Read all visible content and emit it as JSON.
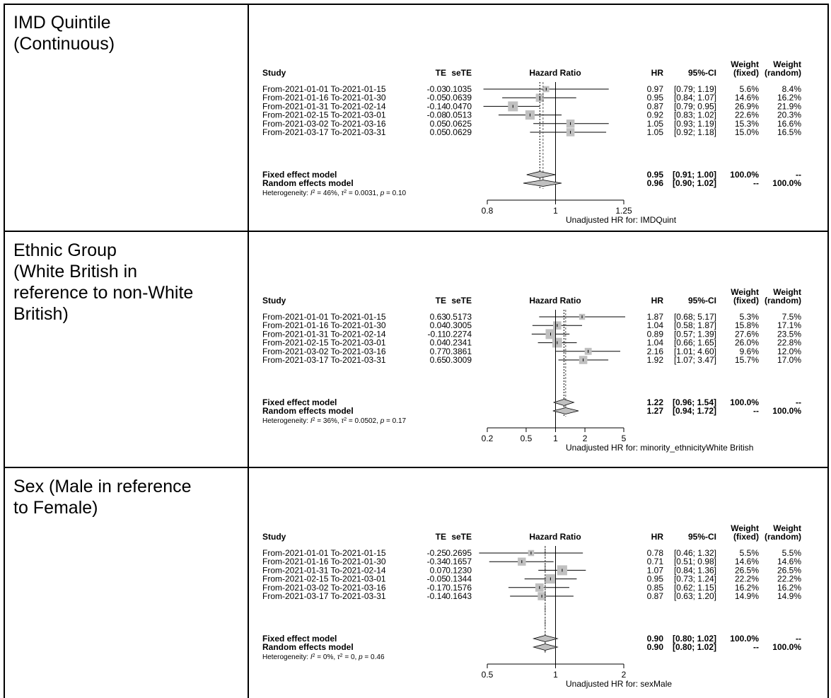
{
  "table": {
    "rows": [
      {
        "label": "IMD Quintile\n(Continuous)",
        "forest": {
          "columns": {
            "study": "Study",
            "te": "TE",
            "sete": "seTE",
            "plot": "Hazard Ratio",
            "hr": "HR",
            "ci": "95%-CI",
            "wfixed": "Weight\n(fixed)",
            "wrandom": "Weight\n(random)"
          },
          "studies": [
            {
              "label": "From-2021-01-01 To-2021-01-15",
              "te": "-0.03",
              "sete": "0.1035",
              "hr": "0.97",
              "ci": "[0.79; 1.19]",
              "wf": "5.6%",
              "wr": "8.4%"
            },
            {
              "label": "From-2021-01-16 To-2021-01-30",
              "te": "-0.05",
              "sete": "0.0639",
              "hr": "0.95",
              "ci": "[0.84; 1.07]",
              "wf": "14.6%",
              "wr": "16.2%"
            },
            {
              "label": "From-2021-01-31 To-2021-02-14",
              "te": "-0.14",
              "sete": "0.0470",
              "hr": "0.87",
              "ci": "[0.79; 0.95]",
              "wf": "26.9%",
              "wr": "21.9%"
            },
            {
              "label": "From-2021-02-15 To-2021-03-01",
              "te": "-0.08",
              "sete": "0.0513",
              "hr": "0.92",
              "ci": "[0.83; 1.02]",
              "wf": "22.6%",
              "wr": "20.3%"
            },
            {
              "label": "From-2021-03-02 To-2021-03-16",
              "te": "0.05",
              "sete": "0.0625",
              "hr": "1.05",
              "ci": "[0.93; 1.19]",
              "wf": "15.3%",
              "wr": "16.6%"
            },
            {
              "label": "From-2021-03-17 To-2021-03-31",
              "te": "0.05",
              "sete": "0.0629",
              "hr": "1.05",
              "ci": "[0.92; 1.18]",
              "wf": "15.0%",
              "wr": "16.5%"
            }
          ],
          "fixed": {
            "label": "Fixed effect model",
            "hr": "0.95",
            "ci": "[0.91; 1.00]",
            "wf": "100.0%",
            "wr": "--"
          },
          "random": {
            "label": "Random effects model",
            "hr": "0.96",
            "ci": "[0.90; 1.02]",
            "wf": "--",
            "wr": "100.0%"
          },
          "heterogeneity": {
            "i2": "46%",
            "tau2": "0.0031",
            "p": "0.10"
          },
          "ticks": [
            "0.8",
            "1",
            "1.25"
          ],
          "xlabel": "Unadjusted HR for: IMDQuint"
        }
      },
      {
        "label": "Ethnic Group\n(White British in\nreference to non-White\nBritish)",
        "forest": {
          "columns": {
            "study": "Study",
            "te": "TE",
            "sete": "seTE",
            "plot": "Hazard Ratio",
            "hr": "HR",
            "ci": "95%-CI",
            "wfixed": "Weight\n(fixed)",
            "wrandom": "Weight\n(random)"
          },
          "studies": [
            {
              "label": "From-2021-01-01 To-2021-01-15",
              "te": "0.63",
              "sete": "0.5173",
              "hr": "1.87",
              "ci": "[0.68; 5.17]",
              "wf": "5.3%",
              "wr": "7.5%"
            },
            {
              "label": "From-2021-01-16 To-2021-01-30",
              "te": "0.04",
              "sete": "0.3005",
              "hr": "1.04",
              "ci": "[0.58; 1.87]",
              "wf": "15.8%",
              "wr": "17.1%"
            },
            {
              "label": "From-2021-01-31 To-2021-02-14",
              "te": "-0.11",
              "sete": "0.2274",
              "hr": "0.89",
              "ci": "[0.57; 1.39]",
              "wf": "27.6%",
              "wr": "23.5%"
            },
            {
              "label": "From-2021-02-15 To-2021-03-01",
              "te": "0.04",
              "sete": "0.2341",
              "hr": "1.04",
              "ci": "[0.66; 1.65]",
              "wf": "26.0%",
              "wr": "22.8%"
            },
            {
              "label": "From-2021-03-02 To-2021-03-16",
              "te": "0.77",
              "sete": "0.3861",
              "hr": "2.16",
              "ci": "[1.01; 4.60]",
              "wf": "9.6%",
              "wr": "12.0%"
            },
            {
              "label": "From-2021-03-17 To-2021-03-31",
              "te": "0.65",
              "sete": "0.3009",
              "hr": "1.92",
              "ci": "[1.07; 3.47]",
              "wf": "15.7%",
              "wr": "17.0%"
            }
          ],
          "fixed": {
            "label": "Fixed effect model",
            "hr": "1.22",
            "ci": "[0.96; 1.54]",
            "wf": "100.0%",
            "wr": "--"
          },
          "random": {
            "label": "Random effects model",
            "hr": "1.27",
            "ci": "[0.94; 1.72]",
            "wf": "--",
            "wr": "100.0%"
          },
          "heterogeneity": {
            "i2": "36%",
            "tau2": "0.0502",
            "p": "0.17"
          },
          "ticks": [
            "0.2",
            "0.5",
            "1",
            "2",
            "5"
          ],
          "xlabel": "Unadjusted HR for: minority_ethnicityWhite British"
        }
      },
      {
        "label": "Sex (Male in reference\nto Female)",
        "forest": {
          "columns": {
            "study": "Study",
            "te": "TE",
            "sete": "seTE",
            "plot": "Hazard Ratio",
            "hr": "HR",
            "ci": "95%-CI",
            "wfixed": "Weight\n(fixed)",
            "wrandom": "Weight\n(random)"
          },
          "studies": [
            {
              "label": "From-2021-01-01 To-2021-01-15",
              "te": "-0.25",
              "sete": "0.2695",
              "hr": "0.78",
              "ci": "[0.46; 1.32]",
              "wf": "5.5%",
              "wr": "5.5%"
            },
            {
              "label": "From-2021-01-16 To-2021-01-30",
              "te": "-0.34",
              "sete": "0.1657",
              "hr": "0.71",
              "ci": "[0.51; 0.98]",
              "wf": "14.6%",
              "wr": "14.6%"
            },
            {
              "label": "From-2021-01-31 To-2021-02-14",
              "te": "0.07",
              "sete": "0.1230",
              "hr": "1.07",
              "ci": "[0.84; 1.36]",
              "wf": "26.5%",
              "wr": "26.5%"
            },
            {
              "label": "From-2021-02-15 To-2021-03-01",
              "te": "-0.05",
              "sete": "0.1344",
              "hr": "0.95",
              "ci": "[0.73; 1.24]",
              "wf": "22.2%",
              "wr": "22.2%"
            },
            {
              "label": "From-2021-03-02 To-2021-03-16",
              "te": "-0.17",
              "sete": "0.1576",
              "hr": "0.85",
              "ci": "[0.62; 1.15]",
              "wf": "16.2%",
              "wr": "16.2%"
            },
            {
              "label": "From-2021-03-17 To-2021-03-31",
              "te": "-0.14",
              "sete": "0.1643",
              "hr": "0.87",
              "ci": "[0.63; 1.20]",
              "wf": "14.9%",
              "wr": "14.9%"
            }
          ],
          "fixed": {
            "label": "Fixed effect model",
            "hr": "0.90",
            "ci": "[0.80; 1.02]",
            "wf": "100.0%",
            "wr": "--"
          },
          "random": {
            "label": "Random effects model",
            "hr": "0.90",
            "ci": "[0.80; 1.02]",
            "wf": "--",
            "wr": "100.0%"
          },
          "heterogeneity": {
            "i2": "0%",
            "tau2": "0",
            "p": "0.46"
          },
          "ticks": [
            "0.5",
            "1",
            "2"
          ],
          "xlabel": "Unadjusted HR for: sexMale"
        }
      }
    ]
  },
  "chart_data": [
    {
      "type": "forest",
      "measure": "Hazard Ratio",
      "xscale": "log",
      "xticks": [
        0.8,
        1,
        1.25
      ],
      "xlim": [
        0.8,
        1.25
      ],
      "xlabel": "Unadjusted HR for: IMDQuint",
      "categories": [
        "From-2021-01-01 To-2021-01-15",
        "From-2021-01-16 To-2021-01-30",
        "From-2021-01-31 To-2021-02-14",
        "From-2021-02-15 To-2021-03-01",
        "From-2021-03-02 To-2021-03-16",
        "From-2021-03-17 To-2021-03-31"
      ],
      "hr": [
        0.97,
        0.95,
        0.87,
        0.92,
        1.05,
        1.05
      ],
      "ci_lower": [
        0.79,
        0.84,
        0.79,
        0.83,
        0.93,
        0.92
      ],
      "ci_upper": [
        1.19,
        1.07,
        0.95,
        1.02,
        1.19,
        1.18
      ],
      "weight_fixed": [
        5.6,
        14.6,
        26.9,
        22.6,
        15.3,
        15.0
      ],
      "weight_random": [
        8.4,
        16.2,
        21.9,
        20.3,
        16.6,
        16.5
      ],
      "fixed": {
        "hr": 0.95,
        "lower": 0.91,
        "upper": 1.0
      },
      "random": {
        "hr": 0.96,
        "lower": 0.9,
        "upper": 1.02
      }
    },
    {
      "type": "forest",
      "measure": "Hazard Ratio",
      "xscale": "log",
      "xticks": [
        0.2,
        0.5,
        1,
        2,
        5
      ],
      "xlim": [
        0.2,
        5
      ],
      "xlabel": "Unadjusted HR for: minority_ethnicityWhite British",
      "categories": [
        "From-2021-01-01 To-2021-01-15",
        "From-2021-01-16 To-2021-01-30",
        "From-2021-01-31 To-2021-02-14",
        "From-2021-02-15 To-2021-03-01",
        "From-2021-03-02 To-2021-03-16",
        "From-2021-03-17 To-2021-03-31"
      ],
      "hr": [
        1.87,
        1.04,
        0.89,
        1.04,
        2.16,
        1.92
      ],
      "ci_lower": [
        0.68,
        0.58,
        0.57,
        0.66,
        1.01,
        1.07
      ],
      "ci_upper": [
        5.17,
        1.87,
        1.39,
        1.65,
        4.6,
        3.47
      ],
      "weight_fixed": [
        5.3,
        15.8,
        27.6,
        26.0,
        9.6,
        15.7
      ],
      "weight_random": [
        7.5,
        17.1,
        23.5,
        22.8,
        12.0,
        17.0
      ],
      "fixed": {
        "hr": 1.22,
        "lower": 0.96,
        "upper": 1.54
      },
      "random": {
        "hr": 1.27,
        "lower": 0.94,
        "upper": 1.72
      }
    },
    {
      "type": "forest",
      "measure": "Hazard Ratio",
      "xscale": "log",
      "xticks": [
        0.5,
        1,
        2
      ],
      "xlim": [
        0.5,
        2
      ],
      "xlabel": "Unadjusted HR for: sexMale",
      "categories": [
        "From-2021-01-01 To-2021-01-15",
        "From-2021-01-16 To-2021-01-30",
        "From-2021-01-31 To-2021-02-14",
        "From-2021-02-15 To-2021-03-01",
        "From-2021-03-02 To-2021-03-16",
        "From-2021-03-17 To-2021-03-31"
      ],
      "hr": [
        0.78,
        0.71,
        1.07,
        0.95,
        0.85,
        0.87
      ],
      "ci_lower": [
        0.46,
        0.51,
        0.84,
        0.73,
        0.62,
        0.63
      ],
      "ci_upper": [
        1.32,
        0.98,
        1.36,
        1.24,
        1.15,
        1.2
      ],
      "weight_fixed": [
        5.5,
        14.6,
        26.5,
        22.2,
        16.2,
        14.9
      ],
      "weight_random": [
        5.5,
        14.6,
        26.5,
        22.2,
        16.2,
        14.9
      ],
      "fixed": {
        "hr": 0.9,
        "lower": 0.8,
        "upper": 1.02
      },
      "random": {
        "hr": 0.9,
        "lower": 0.8,
        "upper": 1.02
      }
    }
  ]
}
